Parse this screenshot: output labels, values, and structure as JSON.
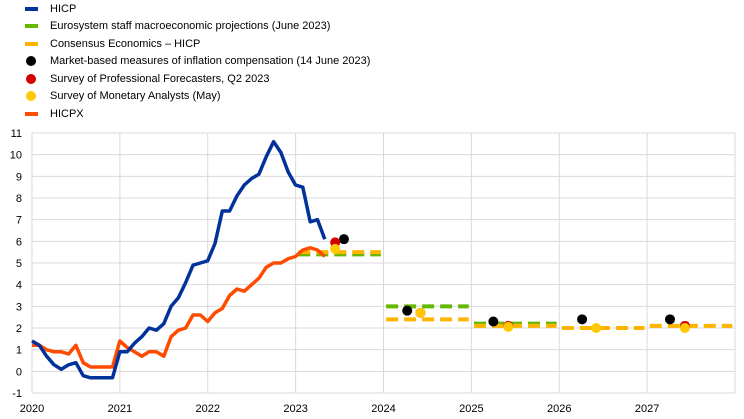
{
  "legend": [
    {
      "label": "HICP",
      "kind": "line",
      "color": "#003299"
    },
    {
      "label": "Eurosystem staff macroeconomic projections (June 2023)",
      "kind": "line",
      "color": "#65B800"
    },
    {
      "label": "Consensus Economics – HICP",
      "kind": "line",
      "color": "#FFB400"
    },
    {
      "label": "Market-based measures of inflation compensation (14 June 2023)",
      "kind": "dot",
      "color": "#000000"
    },
    {
      "label": "Survey of Professional Forecasters, Q2 2023",
      "kind": "dot",
      "color": "#D20000"
    },
    {
      "label": "Survey of Monetary Analysts (May)",
      "kind": "dot",
      "color": "#FFC800"
    },
    {
      "label": "HICPX",
      "kind": "line",
      "color": "#FF4B00"
    }
  ],
  "chart_data": {
    "type": "line",
    "title": "",
    "xlabel": "",
    "ylabel": "",
    "xlim": [
      2020,
      2028
    ],
    "ylim": [
      -1,
      11
    ],
    "x_ticks": [
      "2020",
      "2021",
      "2022",
      "2023",
      "2024",
      "2025",
      "2026",
      "2027"
    ],
    "y_ticks": [
      "-1",
      "0",
      "1",
      "2",
      "3",
      "4",
      "5",
      "6",
      "7",
      "8",
      "9",
      "10",
      "11"
    ],
    "grid": true,
    "series": [
      {
        "name": "HICP",
        "color": "#003299",
        "start": 2020.0,
        "step": 0.0833,
        "values": [
          1.4,
          1.2,
          0.7,
          0.3,
          0.1,
          0.3,
          0.4,
          -0.2,
          -0.3,
          -0.3,
          -0.3,
          -0.3,
          0.9,
          0.9,
          1.3,
          1.6,
          2.0,
          1.9,
          2.2,
          3.0,
          3.4,
          4.1,
          4.9,
          5.0,
          5.1,
          5.9,
          7.4,
          7.4,
          8.1,
          8.6,
          8.9,
          9.1,
          9.9,
          10.6,
          10.1,
          9.2,
          8.6,
          8.5,
          6.9,
          7.0,
          6.1
        ]
      },
      {
        "name": "HICPX",
        "color": "#FF4B00",
        "start": 2020.0,
        "step": 0.0833,
        "values": [
          1.2,
          1.2,
          1.0,
          0.9,
          0.9,
          0.8,
          1.2,
          0.4,
          0.2,
          0.2,
          0.2,
          0.2,
          1.4,
          1.1,
          0.9,
          0.7,
          0.9,
          0.9,
          0.7,
          1.6,
          1.9,
          2.0,
          2.6,
          2.6,
          2.3,
          2.7,
          2.9,
          3.5,
          3.8,
          3.7,
          4.0,
          4.3,
          4.8,
          5.0,
          5.0,
          5.2,
          5.3,
          5.6,
          5.7,
          5.6,
          5.3
        ]
      }
    ],
    "projections": [
      {
        "name": "Eurosystem staff macroeconomic projections (June 2023)",
        "color": "#65B800",
        "years": [
          2023,
          2024,
          2025
        ],
        "values": [
          5.4,
          3.0,
          2.2
        ]
      },
      {
        "name": "Consensus Economics – HICP",
        "color": "#FFB400",
        "years": [
          2023,
          2024,
          2025,
          2026,
          2027
        ],
        "values": [
          5.5,
          2.4,
          2.1,
          2.0,
          2.1
        ]
      }
    ],
    "points": [
      {
        "name": "Market-based measures of inflation compensation (14 June 2023)",
        "color": "#000000",
        "x": [
          2023.55,
          2024.27,
          2025.25,
          2026.26,
          2027.26
        ],
        "y": [
          6.1,
          2.8,
          2.3,
          2.4,
          2.4
        ]
      },
      {
        "name": "Survey of Professional Forecasters, Q2 2023",
        "color": "#D20000",
        "x": [
          2023.45,
          2024.42,
          2025.42,
          2027.43
        ],
        "y": [
          5.95,
          2.7,
          2.1,
          2.1
        ]
      },
      {
        "name": "Survey of Monetary Analysts (May)",
        "color": "#FFC800",
        "x": [
          2023.45,
          2024.42,
          2025.42,
          2026.42,
          2027.43
        ],
        "y": [
          5.65,
          2.7,
          2.05,
          2.0,
          2.0
        ]
      }
    ]
  }
}
